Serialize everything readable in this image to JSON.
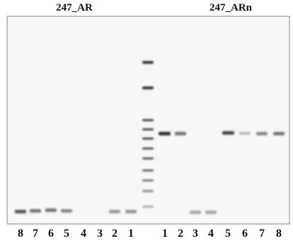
{
  "header": {
    "left_title": "247_AR",
    "right_title": "247_ARn"
  },
  "lanes": {
    "left": [
      "8",
      "7",
      "6",
      "5",
      "4",
      "3",
      "2",
      "1"
    ],
    "right": [
      "1",
      "2",
      "3",
      "4",
      "5",
      "6",
      "7",
      "8"
    ]
  }
}
